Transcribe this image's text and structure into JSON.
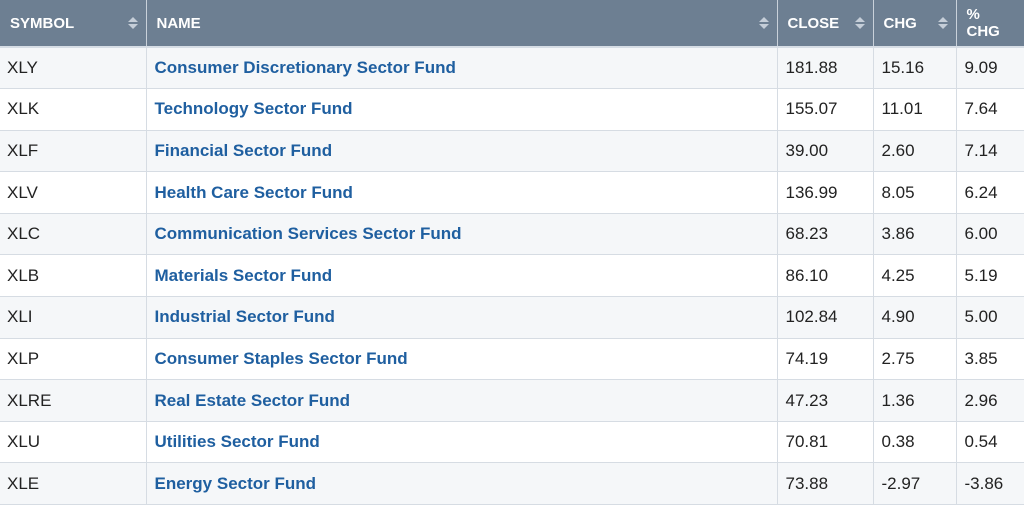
{
  "headers": {
    "symbol": "SYMBOL",
    "name": "NAME",
    "close": "CLOSE",
    "chg": "CHG",
    "pct_chg": "% CHG"
  },
  "rows": [
    {
      "symbol": "XLY",
      "name": "Consumer Discretionary Sector Fund",
      "close": "181.88",
      "chg": "15.16",
      "pct_chg": "9.09"
    },
    {
      "symbol": "XLK",
      "name": "Technology Sector Fund",
      "close": "155.07",
      "chg": "11.01",
      "pct_chg": "7.64"
    },
    {
      "symbol": "XLF",
      "name": "Financial Sector Fund",
      "close": "39.00",
      "chg": "2.60",
      "pct_chg": "7.14"
    },
    {
      "symbol": "XLV",
      "name": "Health Care Sector Fund",
      "close": "136.99",
      "chg": "8.05",
      "pct_chg": "6.24"
    },
    {
      "symbol": "XLC",
      "name": "Communication Services Sector Fund",
      "close": "68.23",
      "chg": "3.86",
      "pct_chg": "6.00"
    },
    {
      "symbol": "XLB",
      "name": "Materials Sector Fund",
      "close": "86.10",
      "chg": "4.25",
      "pct_chg": "5.19"
    },
    {
      "symbol": "XLI",
      "name": "Industrial Sector Fund",
      "close": "102.84",
      "chg": "4.90",
      "pct_chg": "5.00"
    },
    {
      "symbol": "XLP",
      "name": "Consumer Staples Sector Fund",
      "close": "74.19",
      "chg": "2.75",
      "pct_chg": "3.85"
    },
    {
      "symbol": "XLRE",
      "name": "Real Estate Sector Fund",
      "close": "47.23",
      "chg": "1.36",
      "pct_chg": "2.96"
    },
    {
      "symbol": "XLU",
      "name": "Utilities Sector Fund",
      "close": "70.81",
      "chg": "0.38",
      "pct_chg": "0.54"
    },
    {
      "symbol": "XLE",
      "name": "Energy Sector Fund",
      "close": "73.88",
      "chg": "-2.97",
      "pct_chg": "-3.86"
    }
  ],
  "icons": {
    "sort": "sort-up-down-icon"
  },
  "colors": {
    "header_bg": "#6d7f92",
    "link": "#1f5fa0",
    "row_alt": "#f5f7f9"
  }
}
